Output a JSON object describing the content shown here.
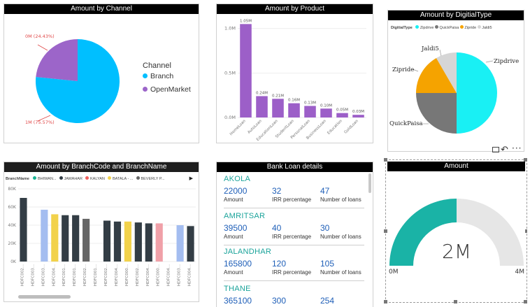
{
  "channel": {
    "title": "Amount by Channel",
    "legend_title": "Channel",
    "legend": [
      {
        "label": "Branch",
        "color": "#00bfff"
      },
      {
        "label": "OpenMarket",
        "color": "#9c65c9"
      }
    ],
    "labels": {
      "openmarket": "0M (24.43%)",
      "branch": "1M (75.57%)"
    }
  },
  "product": {
    "title": "Amount by Product",
    "color": "#9c5fc8"
  },
  "digital": {
    "title": "Amount by DigitialType",
    "legend_title": "DigitialType",
    "legend": [
      {
        "label": "Zipdrive",
        "color": "#19f0f4"
      },
      {
        "label": "QuickPaisa",
        "color": "#777777"
      },
      {
        "label": "Zipride",
        "color": "#f5a300"
      },
      {
        "label": "Jaldi5",
        "color": "#d6d6d6"
      }
    ],
    "labels": {
      "zipdrive": "Zipdrive",
      "quickpaisa": "QuickPaisa",
      "zipride": "Zipride",
      "jaldi5": "Jaldi5"
    }
  },
  "branch": {
    "title": "Amount by BranchCode and BranchName",
    "legend_title": "BranchName",
    "legend": [
      {
        "label": "BHIWAN...",
        "color": "#1ab394"
      },
      {
        "label": "JAWAHAR",
        "color": "#333d45"
      },
      {
        "label": "KALYAN",
        "color": "#f0605d"
      },
      {
        "label": "BATALA - ...",
        "color": "#f2d24b"
      },
      {
        "label": "BEVERLY P...",
        "color": "#666666"
      }
    ]
  },
  "loan": {
    "title": "Bank Loan details",
    "col_labels": [
      "Amount",
      "IRR percentage",
      "Number of loans"
    ],
    "rows": [
      {
        "city": "AKOLA",
        "amount": "22000",
        "irr": "32",
        "loans": "47"
      },
      {
        "city": "AMRITSAR",
        "amount": "39500",
        "irr": "40",
        "loans": "30"
      },
      {
        "city": "JALANDHAR",
        "amount": "165800",
        "irr": "120",
        "loans": "105"
      },
      {
        "city": "THANE",
        "amount": "365100",
        "irr": "300",
        "loans": "254"
      }
    ]
  },
  "gauge": {
    "title": "Amount",
    "value_label": "2M",
    "min_label": "0M",
    "max_label": "4M",
    "value": 2,
    "min": 0,
    "max": 4,
    "fill_color": "#1ab3a6",
    "track_color": "#e6e6e6"
  },
  "chart_data": [
    {
      "type": "pie",
      "title": "Amount by Channel",
      "categories": [
        "Branch",
        "OpenMarket"
      ],
      "values": [
        75.57,
        24.43
      ],
      "colors": [
        "#00bfff",
        "#9c65c9"
      ]
    },
    {
      "type": "bar",
      "title": "Amount by Product",
      "categories": [
        "HomeLoan",
        "AutoLoan",
        "EducationLoan",
        "StudentLoan",
        "PersonalLoan",
        "BusinessLoan",
        "Education",
        "GoldLoan"
      ],
      "values": [
        1.05,
        0.24,
        0.21,
        0.16,
        0.13,
        0.1,
        0.05,
        0.03
      ],
      "data_labels": [
        "1.05M",
        "0.24M",
        "0.21M",
        "0.16M",
        "0.13M",
        "0.10M",
        "0.05M",
        "0.03M"
      ],
      "y_ticks": [
        "0.0M",
        "0.5M",
        "1.0M"
      ],
      "ylim": [
        0,
        1.1
      ]
    },
    {
      "type": "pie",
      "title": "Amount by DigitialType",
      "categories": [
        "Zipdrive",
        "QuickPaisa",
        "Zipride",
        "Jaldi5"
      ],
      "values": [
        50,
        22,
        16,
        12
      ],
      "colors": [
        "#19f0f4",
        "#777777",
        "#f5a300",
        "#d6d6d6"
      ]
    },
    {
      "type": "bar",
      "title": "Amount by BranchCode and BranchName",
      "categories": [
        "HDFC002...",
        "HDFC003...",
        "HDFC003...",
        "HDFC004...",
        "HDFC001...",
        "HDFC001...",
        "HDFC002...",
        "HDFC001...",
        "HDFC002...",
        "HDFC004...",
        "HDFC000...",
        "HDFC002...",
        "HDFC004...",
        "HDFC000...",
        "HDFC004...",
        "HDFC003...",
        "HDFC004..."
      ],
      "values": [
        70,
        0,
        57,
        52,
        51,
        51,
        47,
        0,
        45,
        44,
        44,
        43,
        42,
        42,
        0,
        40,
        39
      ],
      "colors": [
        "#333d45",
        "#ffffff",
        "#a4bdf0",
        "#f2d24b",
        "#333d45",
        "#333d45",
        "#666666",
        "#ffffff",
        "#333d45",
        "#333d45",
        "#f2d24b",
        "#333d45",
        "#333d45",
        "#f0a0a8",
        "#ffffff",
        "#a4bdf0",
        "#333d45"
      ],
      "y_ticks": [
        "0K",
        "20K",
        "40K",
        "60K",
        "80K"
      ],
      "ylim": [
        0,
        80
      ]
    }
  ]
}
